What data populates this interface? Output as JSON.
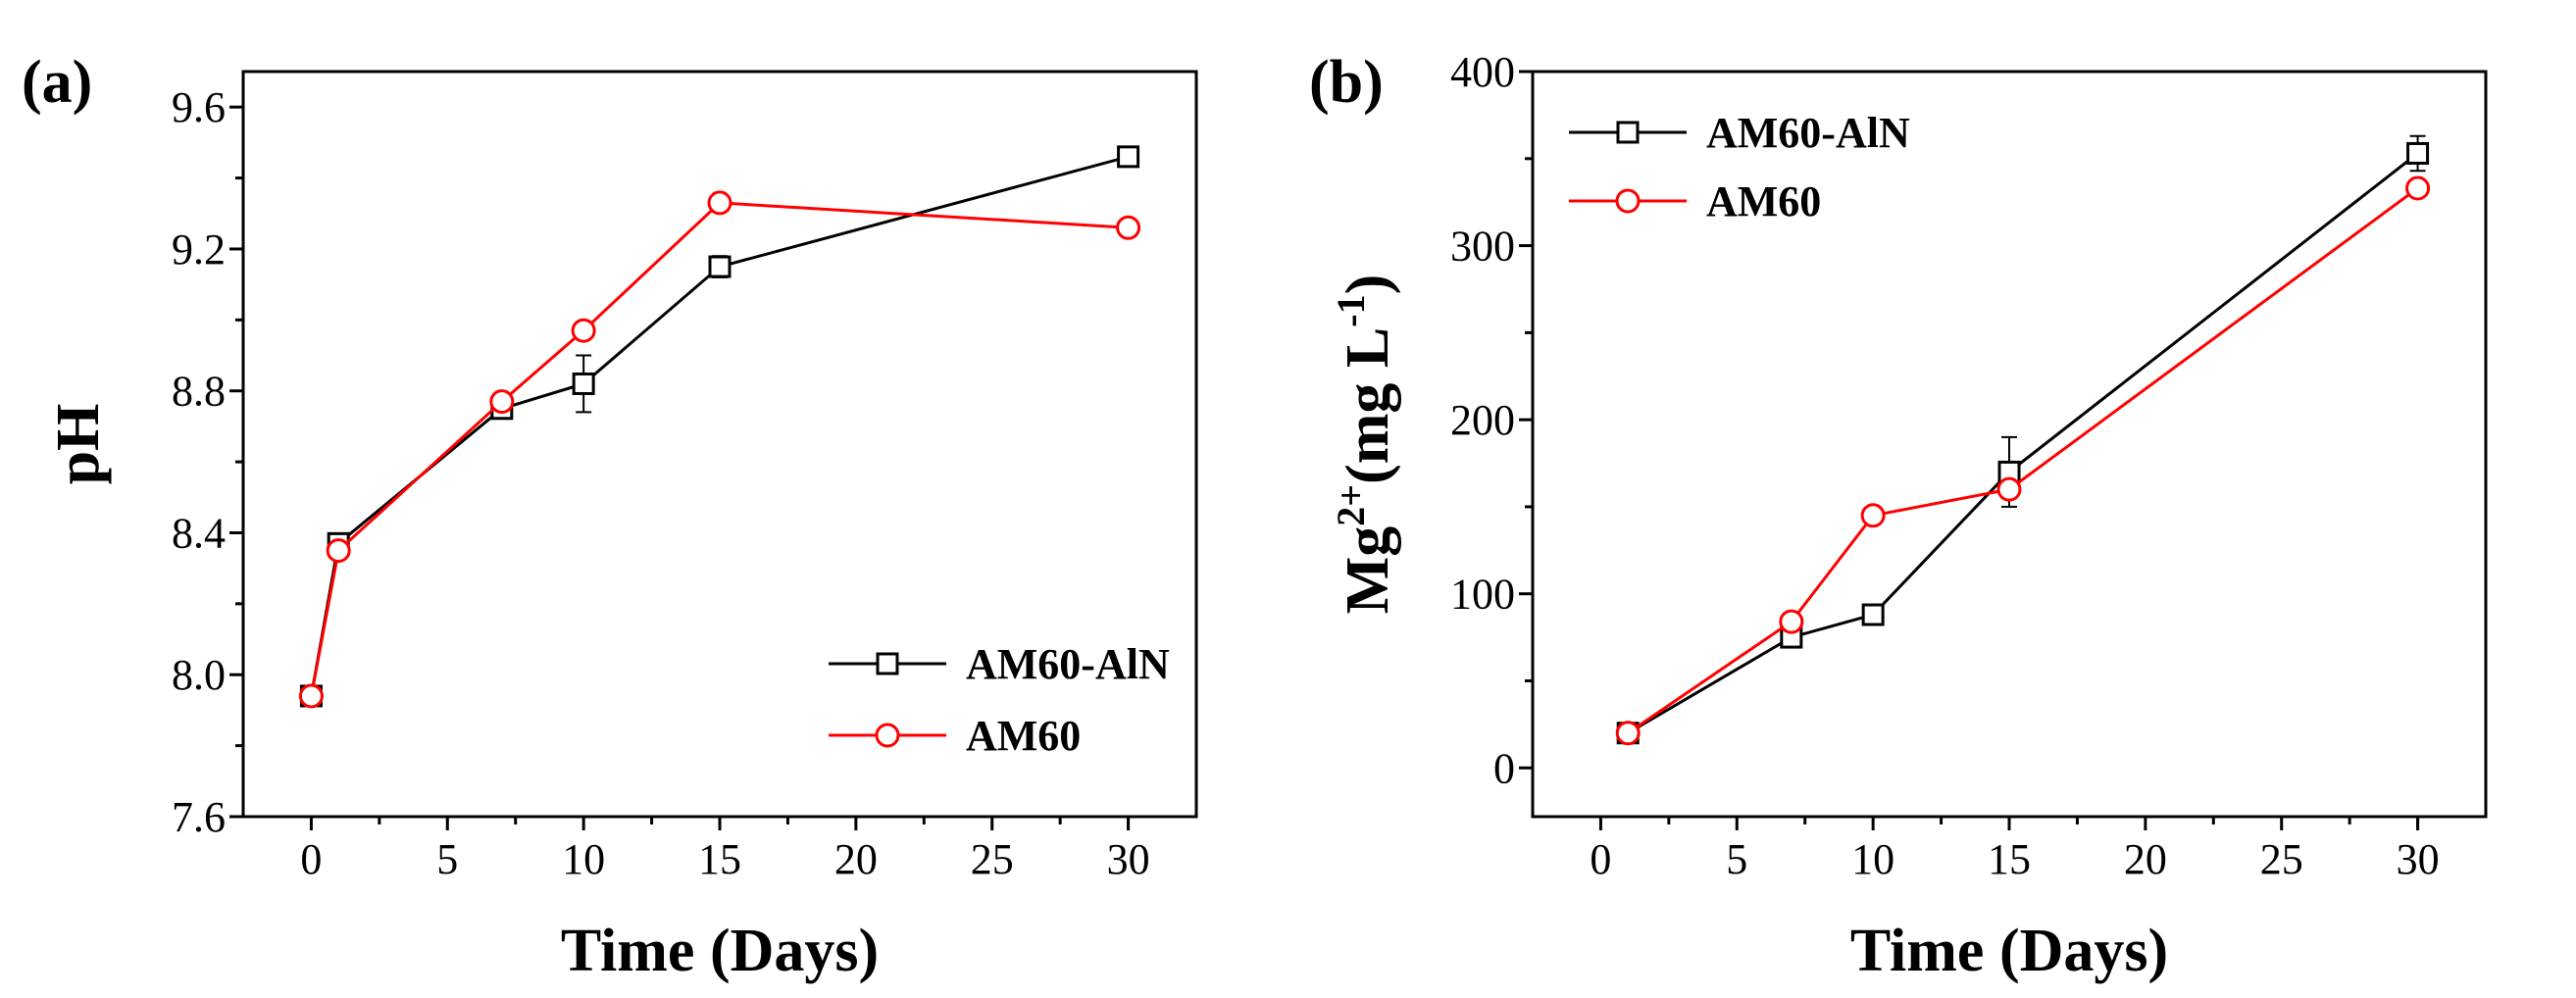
{
  "figure": {
    "panels": [
      {
        "label": "(a)"
      },
      {
        "label": "(b)"
      }
    ]
  },
  "chart_data": [
    {
      "type": "line",
      "panel": "(a)",
      "xlabel": "Time (Days)",
      "ylabel": "pH",
      "xlim": [
        -2.5,
        32.5
      ],
      "ylim": [
        7.6,
        9.7
      ],
      "xticks": [
        0,
        5,
        10,
        15,
        20,
        25,
        30
      ],
      "yticks": [
        7.6,
        8.0,
        8.4,
        8.8,
        9.2,
        9.6
      ],
      "ytick_labels": [
        "7.6",
        "8.0",
        "8.4",
        "8.8",
        "9.2",
        "9.6"
      ],
      "legend_position": "bottom-right",
      "series": [
        {
          "name": "AM60-AlN",
          "color": "#000000",
          "marker": "square",
          "x": [
            0,
            1,
            7,
            10,
            15,
            30
          ],
          "y": [
            7.94,
            8.37,
            8.75,
            8.82,
            9.15,
            9.46
          ],
          "error": [
            0,
            0,
            0,
            0.08,
            0.03,
            0
          ]
        },
        {
          "name": "AM60",
          "color": "#ff0000",
          "marker": "circle",
          "x": [
            0,
            1,
            7,
            10,
            15,
            30
          ],
          "y": [
            7.94,
            8.35,
            8.77,
            8.97,
            9.33,
            9.26
          ],
          "error": [
            0,
            0,
            0,
            0,
            0,
            0
          ]
        }
      ]
    },
    {
      "type": "line",
      "panel": "(b)",
      "xlabel": "Time (Days)",
      "ylabel": "Mg2+ (mg L-1)",
      "ylabel_parts": {
        "main": "Mg",
        "sup1": "2+",
        "mid": "(mg L",
        "sup2": "-1",
        "end": ")"
      },
      "xlim": [
        -2.5,
        32.5
      ],
      "ylim": [
        -28,
        400
      ],
      "xticks": [
        0,
        5,
        10,
        15,
        20,
        25,
        30
      ],
      "yticks": [
        0,
        100,
        200,
        300,
        400
      ],
      "ytick_labels": [
        "0",
        "100",
        "200",
        "300",
        "400"
      ],
      "legend_position": "top-left",
      "series": [
        {
          "name": "AM60-AlN",
          "color": "#000000",
          "marker": "square",
          "x": [
            1,
            7,
            10,
            15,
            30
          ],
          "y": [
            20,
            75,
            88,
            170,
            353
          ],
          "error": [
            0,
            0,
            0,
            20,
            10
          ]
        },
        {
          "name": "AM60",
          "color": "#ff0000",
          "marker": "circle",
          "x": [
            1,
            7,
            10,
            15,
            30
          ],
          "y": [
            20,
            84,
            145,
            160,
            333
          ],
          "error": [
            0,
            0,
            0,
            0,
            0
          ]
        }
      ]
    }
  ]
}
